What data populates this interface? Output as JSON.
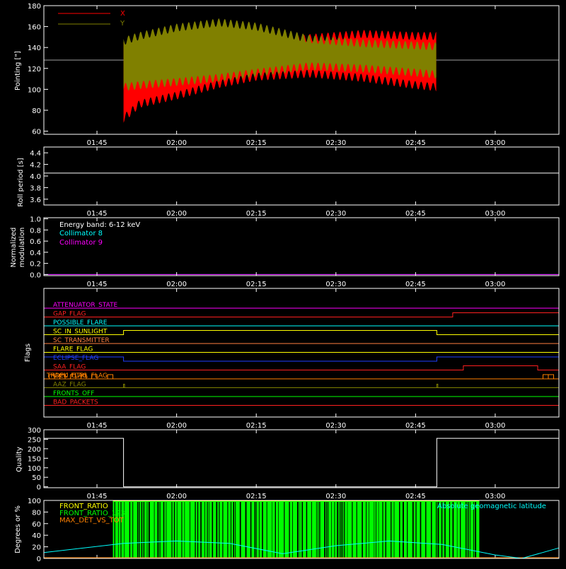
{
  "x_axis": {
    "range": [
      "01:35",
      "03:12"
    ],
    "ticks": [
      "01:45",
      "02:00",
      "02:15",
      "02:30",
      "02:45",
      "03:00"
    ]
  },
  "panels": {
    "pointing": {
      "ylabel": "Pointing [\"]",
      "yticks": [
        "60",
        "80",
        "100",
        "120",
        "140",
        "160",
        "180"
      ],
      "legend": [
        "X",
        "Y"
      ]
    },
    "roll": {
      "ylabel": "Roll period [s]",
      "yticks": [
        "3.6",
        "3.8",
        "4.0",
        "4.2",
        "4.4"
      ]
    },
    "modulation": {
      "ylabel_line1": "Normalized",
      "ylabel_line2": "modulation",
      "yticks": [
        "0.0",
        "0.2",
        "0.4",
        "0.6",
        "0.8",
        "1.0"
      ],
      "legend": [
        "Energy band: 6-12 keV",
        "Collimator 8",
        "Collimator 9"
      ]
    },
    "flags": {
      "ylabel": "Flags",
      "names": [
        "ATTENUATOR_STATE",
        "GAP_FLAG",
        "POSSIBLE_FLARE",
        "SC_IN_SUNLIGHT",
        "SC_TRANSMITTER",
        "FLARE_FLAG",
        "ECLIPSE_FLAG",
        "SAA_FLAG",
        "IDPU_CTRL_FLAG",
        "AAZ_FLAG",
        "FRONTS_OFF",
        "BAD_PACKETS"
      ],
      "overlap_label": "TRACK_FLAG"
    },
    "quality": {
      "ylabel": "Quality",
      "yticks": [
        "0",
        "50",
        "100",
        "150",
        "200",
        "250",
        "300"
      ]
    },
    "ratio": {
      "ylabel": "Degrees or %",
      "yticks": [
        "0",
        "20",
        "40",
        "60",
        "80",
        "100"
      ],
      "legend": [
        "FRONT_RATIO",
        "FRONT_RATIO_1236",
        "MAX_DET_VS_TOT"
      ],
      "legend_right": "Absolute geomagnetic latitude"
    }
  },
  "chart_data": [
    {
      "type": "line",
      "title": "",
      "xlabel": "",
      "ylabel": "Pointing [\"]",
      "ylim": [
        57,
        180
      ],
      "x_range": [
        "01:35",
        "03:12"
      ],
      "reference_line": 128,
      "series": [
        {
          "name": "X",
          "color": "#ff0000",
          "x": [
            "01:50",
            "01:53",
            "02:00",
            "02:08",
            "02:15",
            "02:25",
            "02:35",
            "02:45",
            "02:49"
          ],
          "upper": [
            145,
            145,
            145,
            144,
            146,
            153,
            157,
            155,
            155
          ],
          "lower": [
            68,
            82,
            90,
            101,
            108,
            111,
            107,
            100,
            98
          ]
        },
        {
          "name": "Y",
          "color": "#808000",
          "x": [
            "01:50",
            "01:53",
            "02:00",
            "02:08",
            "02:15",
            "02:25",
            "02:35",
            "02:45",
            "02:49"
          ],
          "upper": [
            150,
            155,
            163,
            168,
            164,
            152,
            148,
            146,
            145
          ],
          "lower": [
            98,
            100,
            103,
            107,
            112,
            118,
            116,
            112,
            110
          ]
        }
      ]
    },
    {
      "type": "line",
      "title": "",
      "ylabel": "Roll period [s]",
      "ylim": [
        3.5,
        4.5
      ],
      "series": [
        {
          "name": "",
          "color": "#ffffff",
          "x": [
            "01:35",
            "03:12"
          ],
          "values": [
            4.05,
            4.05
          ]
        }
      ]
    },
    {
      "type": "line",
      "title": "",
      "ylabel": "Normalized modulation",
      "ylim": [
        -0.02,
        1.02
      ],
      "series": [
        {
          "name": "Collimator 8",
          "color": "#00ffff",
          "x": [
            "01:35",
            "03:12"
          ],
          "values": [
            0.0,
            0.0
          ]
        },
        {
          "name": "Collimator 9",
          "color": "#ff00ff",
          "x": [
            "01:35",
            "03:12"
          ],
          "values": [
            0.0,
            0.0
          ]
        }
      ]
    },
    {
      "type": "line",
      "title": "",
      "ylabel": "Flags",
      "series": [
        {
          "name": "ATTENUATOR_STATE",
          "color": "#ff00ff",
          "segments": [
            [
              "01:35",
              "03:12",
              0
            ]
          ]
        },
        {
          "name": "GAP_FLAG",
          "color": "#ff2020",
          "segments": [
            [
              "01:35",
              "02:52",
              0
            ],
            [
              "02:52",
              "03:12",
              1
            ]
          ]
        },
        {
          "name": "POSSIBLE_FLARE",
          "color": "#00ffff",
          "segments": [
            [
              "01:35",
              "03:12",
              0
            ]
          ]
        },
        {
          "name": "SC_IN_SUNLIGHT",
          "color": "#ffff00",
          "segments": [
            [
              "01:35",
              "01:50",
              0
            ],
            [
              "01:50",
              "02:49",
              1
            ],
            [
              "02:49",
              "03:12",
              0
            ]
          ]
        },
        {
          "name": "SC_TRANSMITTER",
          "color": "#ff8040",
          "segments": [
            [
              "01:35",
              "03:12",
              0
            ]
          ]
        },
        {
          "name": "FLARE_FLAG",
          "color": "#ffff00",
          "segments": [
            [
              "01:35",
              "03:12",
              0
            ]
          ]
        },
        {
          "name": "ECLIPSE_FLAG",
          "color": "#2040ff",
          "segments": [
            [
              "01:35",
              "01:50",
              1
            ],
            [
              "01:50",
              "02:49",
              0
            ],
            [
              "02:49",
              "03:12",
              1
            ]
          ]
        },
        {
          "name": "SAA_FLAG",
          "color": "#ff2020",
          "segments": [
            [
              "01:35",
              "02:54",
              0
            ],
            [
              "02:54",
              "03:08",
              1
            ],
            [
              "03:08",
              "03:12",
              0
            ]
          ]
        },
        {
          "name": "IDPU_CTRL_FLAG",
          "color": "#ff8000",
          "segments": [
            [
              "01:35",
              "03:12",
              0
            ]
          ]
        },
        {
          "name": "AAZ_FLAG",
          "color": "#808000",
          "segments": [
            [
              "01:35",
              "03:12",
              0
            ]
          ]
        },
        {
          "name": "FRONTS_OFF",
          "color": "#00ff00",
          "segments": [
            [
              "01:35",
              "03:12",
              0
            ]
          ]
        },
        {
          "name": "BAD_PACKETS",
          "color": "#ff2020",
          "segments": [
            [
              "01:35",
              "03:12",
              0
            ]
          ]
        }
      ]
    },
    {
      "type": "line",
      "title": "",
      "ylabel": "Quality",
      "ylim": [
        -5,
        300
      ],
      "series": [
        {
          "name": "",
          "color": "#ffffff",
          "x": [
            "01:35",
            "01:50",
            "01:50",
            "02:49",
            "02:49",
            "03:12"
          ],
          "values": [
            255,
            255,
            0,
            0,
            255,
            255
          ]
        }
      ]
    },
    {
      "type": "area",
      "title": "",
      "ylabel": "Degrees or %",
      "ylim": [
        0,
        100
      ],
      "series": [
        {
          "name": "FRONT_RATIO",
          "color": "#ffff00",
          "x": [
            "01:48",
            "02:57"
          ],
          "values": [
            100,
            100
          ]
        },
        {
          "name": "FRONT_RATIO_1236",
          "color": "#00ff00",
          "x": [
            "01:48",
            "02:57"
          ],
          "values": [
            100,
            100
          ]
        },
        {
          "name": "MAX_DET_VS_TOT",
          "color": "#ff8000",
          "x": [
            "01:48",
            "02:57"
          ],
          "values": [
            0,
            0
          ]
        },
        {
          "name": "Absolute geomagnetic latitude",
          "color": "#00ffff",
          "x": [
            "01:35",
            "01:50",
            "02:00",
            "02:10",
            "02:20",
            "02:30",
            "02:40",
            "02:50",
            "03:00",
            "03:05",
            "03:12"
          ],
          "values": [
            10,
            26,
            30,
            26,
            8,
            22,
            30,
            24,
            6,
            0,
            18
          ]
        }
      ]
    }
  ]
}
